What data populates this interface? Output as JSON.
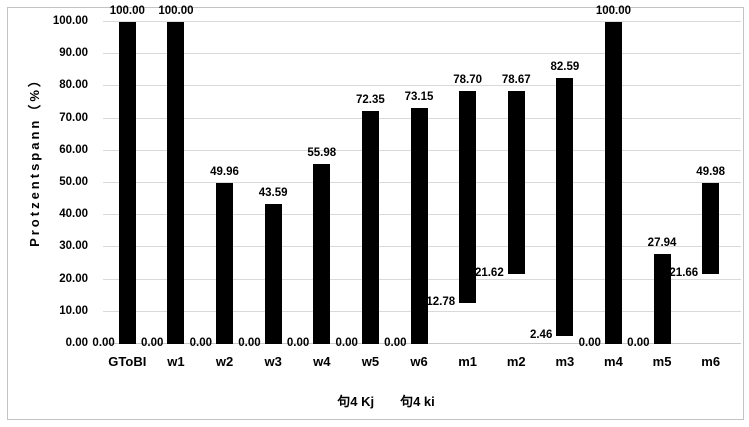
{
  "figure": {
    "y_axis_title": "Protzentspann（%）",
    "x_axis_caption": "句4 Kj　　句4 ki",
    "colors": {
      "bar": "#000000",
      "gridline": "#d9d9d9",
      "frame_border": "#c3c3c3",
      "text": "#000000",
      "background": "#ffffff"
    }
  },
  "chart_data": {
    "type": "bar",
    "subtype": "floating-range-column",
    "title": "",
    "xlabel": "句4 Kj　　句4 ki",
    "ylabel": "Protzentspann（%）",
    "ylim": [
      0,
      100
    ],
    "ytick_step": 10,
    "ytick_labels": [
      "0.00",
      "10.00",
      "20.00",
      "30.00",
      "40.00",
      "50.00",
      "60.00",
      "70.00",
      "80.00",
      "90.00",
      "100.00"
    ],
    "grid": true,
    "legend": false,
    "categories": [
      "GToBI",
      "w1",
      "w2",
      "w3",
      "w4",
      "w5",
      "w6",
      "m1",
      "m2",
      "m3",
      "m4",
      "m5",
      "m6"
    ],
    "series": [
      {
        "name": "range_min",
        "values": [
          0.0,
          0.0,
          0.0,
          0.0,
          0.0,
          0.0,
          0.0,
          12.78,
          21.62,
          2.46,
          0.0,
          0.0,
          21.66
        ]
      },
      {
        "name": "range_max",
        "values": [
          100.0,
          100.0,
          49.96,
          43.59,
          55.98,
          72.35,
          73.15,
          78.7,
          78.67,
          82.59,
          100.0,
          27.94,
          49.98
        ]
      }
    ],
    "min_labels": [
      "0.00",
      "0.00",
      "0.00",
      "0.00",
      "0.00",
      "0.00",
      "0.00",
      "12.78",
      "21.62",
      "2.46",
      "0.00",
      "0.00",
      "21.66"
    ],
    "max_labels": [
      "100.00",
      "100.00",
      "49.96",
      "43.59",
      "55.98",
      "72.35",
      "73.15",
      "78.70",
      "78.67",
      "82.59",
      "100.00",
      "27.94",
      "49.98"
    ]
  }
}
